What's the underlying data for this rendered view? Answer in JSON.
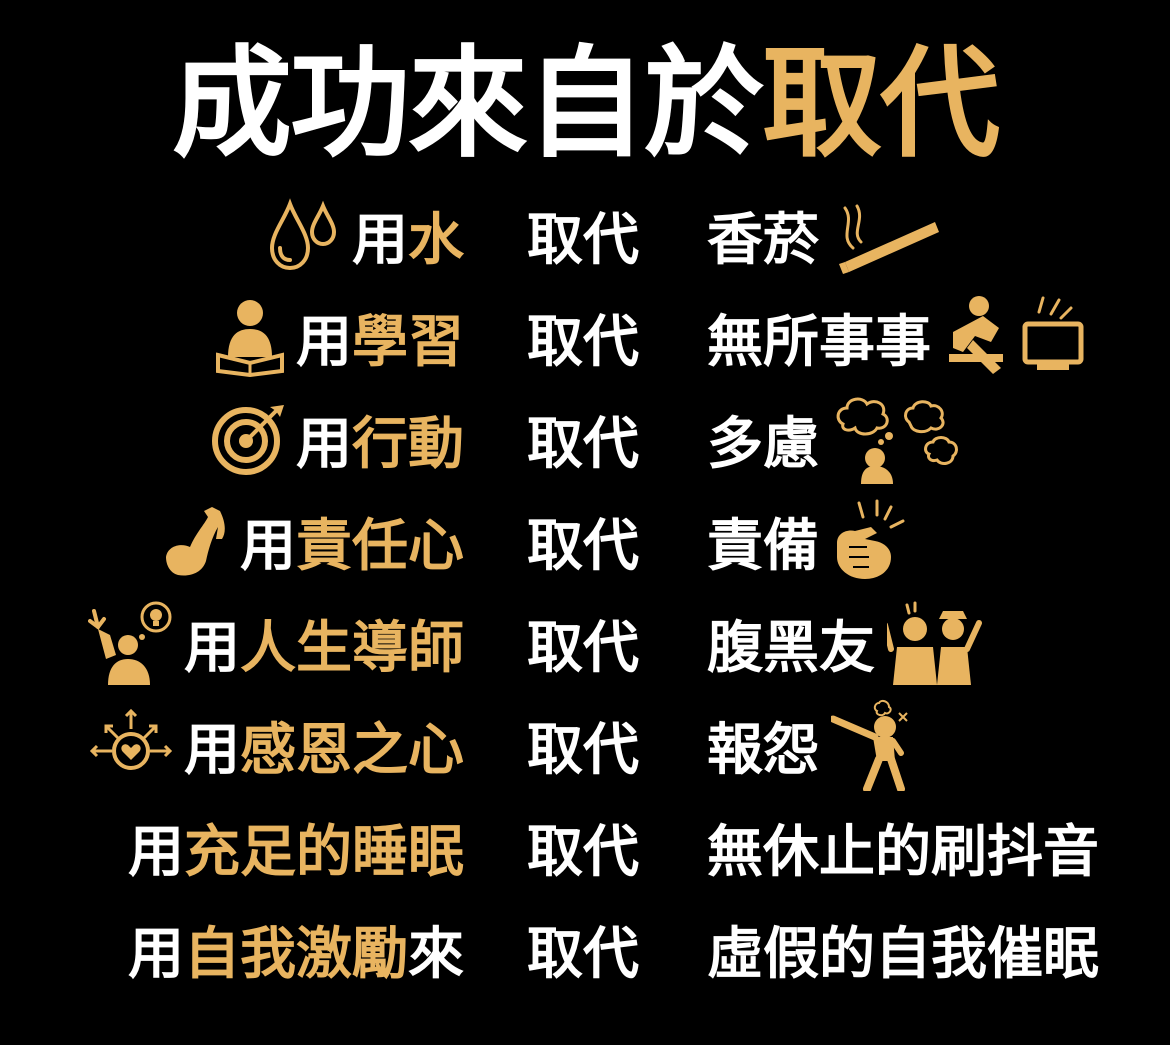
{
  "title": {
    "white": "成功來自於",
    "gold": "取代"
  },
  "accent_color": "#e8b460",
  "rows": [
    {
      "use": "用",
      "good": "水",
      "suffix": "",
      "verb": "取代",
      "bad": "香菸",
      "left_icon": "water-drops-icon",
      "right_icon": "cigarette-icon"
    },
    {
      "use": "用",
      "good": "學習",
      "suffix": "",
      "verb": "取代",
      "bad": "無所事事",
      "left_icon": "reading-person-icon",
      "right_icon": "slacking-person-icon"
    },
    {
      "use": "用",
      "good": "行動",
      "suffix": "",
      "verb": "取代",
      "bad": "多慮",
      "left_icon": "target-icon",
      "right_icon": "worried-thoughts-icon"
    },
    {
      "use": "用",
      "good": "責任心",
      "suffix": "",
      "verb": "取代",
      "bad": "責備",
      "left_icon": "flexed-arm-icon",
      "right_icon": "pointing-hand-icon"
    },
    {
      "use": "用",
      "good": "人生導師",
      "suffix": "",
      "verb": "取代",
      "bad": "腹黑友",
      "left_icon": "mentor-idea-icon",
      "right_icon": "two-faced-friends-icon"
    },
    {
      "use": "用",
      "good": "感恩之心",
      "suffix": "",
      "verb": "取代",
      "bad": "報怨",
      "left_icon": "heart-radiating-icon",
      "right_icon": "angry-pointing-person-icon"
    },
    {
      "use": "用",
      "good": "充足的睡眠",
      "suffix": "",
      "verb": "取代",
      "bad": "無休止的刷抖音",
      "left_icon": "",
      "right_icon": ""
    },
    {
      "use": "用",
      "good": "自我激勵",
      "suffix": "來",
      "verb": "取代",
      "bad": "虛假的自我催眠",
      "left_icon": "",
      "right_icon": ""
    }
  ]
}
